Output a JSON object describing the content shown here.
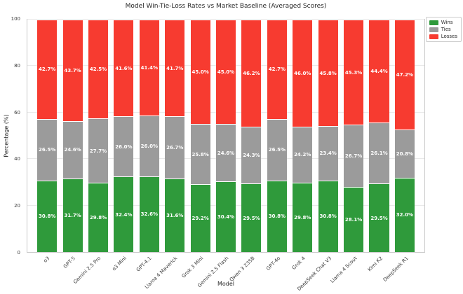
{
  "chart_data": {
    "type": "bar",
    "subtype": "stacked",
    "title": "Model Win-Tie-Loss Rates vs Market Baseline (Averaged Scores)",
    "xlabel": "Model",
    "ylabel": "Percentage (%)",
    "ylim": [
      0,
      100
    ],
    "yticks": [
      0,
      20,
      40,
      60,
      80,
      100
    ],
    "grid": true,
    "legend_position": "upper-right-outside",
    "bar_value_label_format": "{value}%",
    "categories": [
      "o3",
      "GPT-5",
      "Gemini 2.5 Pro",
      "o3 Mini",
      "GPT-4.1",
      "Llama 4 Maverick",
      "Grok 3 Mini",
      "Gemini 2.5 Flash",
      "Qwen 3 235B",
      "GPT-4o",
      "Grok 4",
      "DeepSeek Chat V3",
      "Llama 4 Scout",
      "Kimi K2",
      "DeepSeek R1"
    ],
    "series": [
      {
        "name": "Wins",
        "color": "#2f9a3b",
        "values": [
          30.8,
          31.7,
          29.8,
          32.4,
          32.6,
          31.6,
          29.2,
          30.4,
          29.5,
          30.8,
          29.8,
          30.8,
          28.1,
          29.5,
          32.0
        ]
      },
      {
        "name": "Ties",
        "color": "#9b9b9b",
        "values": [
          26.5,
          24.6,
          27.7,
          26.0,
          26.0,
          26.7,
          25.8,
          24.6,
          24.3,
          26.5,
          24.2,
          23.4,
          26.7,
          26.1,
          20.8
        ]
      },
      {
        "name": "Losses",
        "color": "#f73b30",
        "values": [
          42.7,
          43.7,
          42.5,
          41.6,
          41.4,
          41.7,
          45.0,
          45.0,
          46.2,
          42.7,
          46.0,
          45.8,
          45.3,
          44.4,
          47.2
        ]
      }
    ],
    "colors": {
      "wins": "#2f9a3b",
      "ties": "#9b9b9b",
      "losses": "#f73b30",
      "gridline": "#e9e9e9",
      "spine": "#c9c9c9",
      "text": "#262626"
    }
  }
}
